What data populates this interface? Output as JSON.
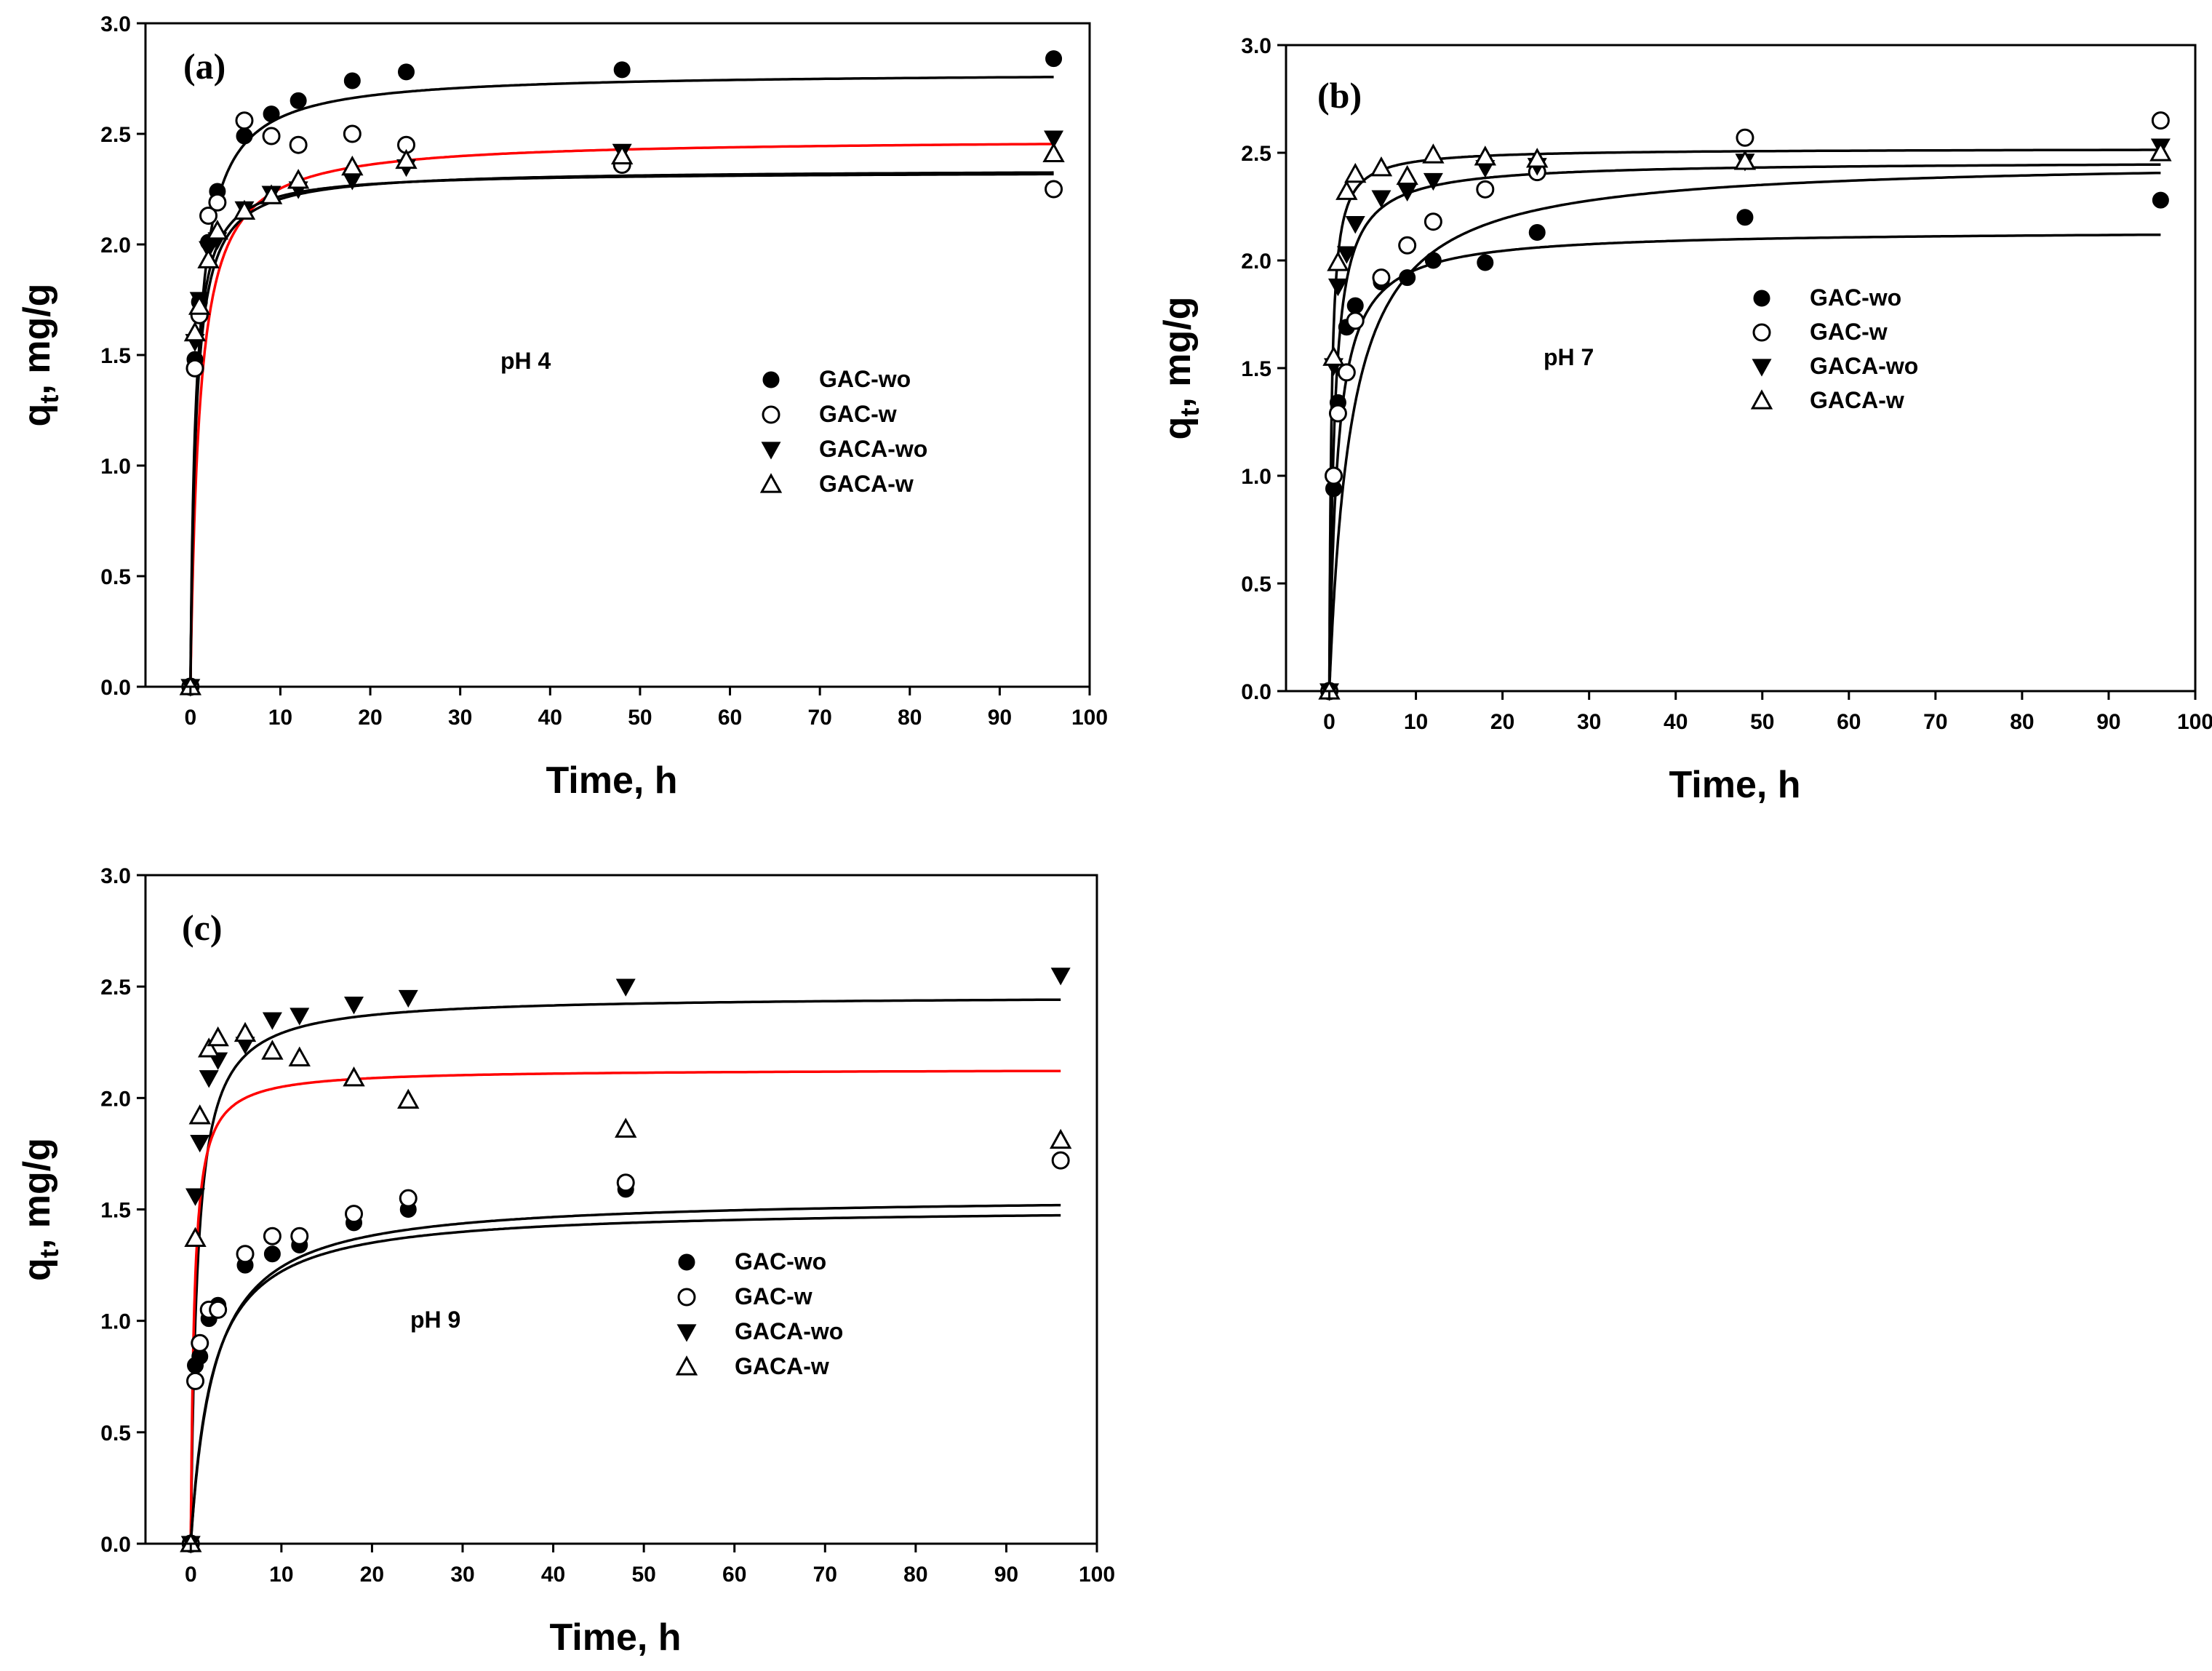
{
  "chart_data": [
    {
      "type": "scatter",
      "panel_label": "(a)",
      "annotation": "pH 4",
      "xlabel": "Time, h",
      "ylabel_main": "q",
      "ylabel_sub": "t",
      "ylabel_unit": ", mg/g",
      "xlim": [
        -5,
        100
      ],
      "ylim": [
        0,
        3.0
      ],
      "xticks": [
        0,
        10,
        20,
        30,
        40,
        50,
        60,
        70,
        80,
        90,
        100
      ],
      "xtick_labels": [
        "0",
        "10",
        "20",
        "30",
        "40",
        "50",
        "60",
        "70",
        "80",
        "90",
        "100"
      ],
      "yticks": [
        0,
        0.5,
        1.0,
        1.5,
        2.0,
        2.5,
        3.0
      ],
      "ytick_labels": [
        "0.0",
        "0.5",
        "1.0",
        "1.5",
        "2.0",
        "2.5",
        "3.0"
      ],
      "legend_position": "right-middle",
      "series": [
        {
          "name": "GAC-wo",
          "marker": "filled-circle",
          "x": [
            0,
            0.5,
            1,
            2,
            3,
            6,
            9,
            12,
            18,
            24,
            48,
            96
          ],
          "y": [
            0,
            1.48,
            1.74,
            2.01,
            2.24,
            2.49,
            2.59,
            2.65,
            2.74,
            2.78,
            2.79,
            2.84
          ]
        },
        {
          "name": "GAC-w",
          "marker": "open-circle",
          "x": [
            0,
            0.5,
            1,
            2,
            3,
            6,
            9,
            12,
            18,
            24,
            48,
            96
          ],
          "y": [
            0,
            1.44,
            1.68,
            2.13,
            2.19,
            2.56,
            2.49,
            2.45,
            2.5,
            2.45,
            2.36,
            2.25
          ]
        },
        {
          "name": "GACA-wo",
          "marker": "filled-triangle-down",
          "x": [
            0,
            0.5,
            1,
            2,
            3,
            6,
            9,
            12,
            18,
            24,
            48,
            96
          ],
          "y": [
            0,
            1.56,
            1.75,
            1.98,
            2.02,
            2.16,
            2.23,
            2.25,
            2.29,
            2.35,
            2.42,
            2.48
          ]
        },
        {
          "name": "GACA-w",
          "marker": "open-triangle-up",
          "x": [
            0,
            0.5,
            1,
            2,
            3,
            6,
            9,
            12,
            18,
            24,
            48,
            96
          ],
          "y": [
            0,
            1.6,
            1.72,
            1.93,
            2.06,
            2.15,
            2.22,
            2.29,
            2.35,
            2.38,
            2.4,
            2.41
          ]
        }
      ],
      "fits": [
        {
          "qe": 2.78,
          "k": 0.45,
          "color": "#000000"
        },
        {
          "qe": 2.48,
          "k": 0.4,
          "color": "#ff0000"
        },
        {
          "qe": 2.34,
          "k": 0.7,
          "color": "#000000"
        },
        {
          "qe": 2.33,
          "k": 0.85,
          "color": "#000000"
        }
      ]
    },
    {
      "type": "scatter",
      "panel_label": "(b)",
      "annotation": "pH 7",
      "xlabel": "Time, h",
      "ylabel_main": "q",
      "ylabel_sub": "t",
      "ylabel_unit": ", mg/g",
      "xlim": [
        -5,
        100
      ],
      "ylim": [
        0,
        3.0
      ],
      "xticks": [
        0,
        10,
        20,
        30,
        40,
        50,
        60,
        70,
        80,
        90,
        100
      ],
      "xtick_labels": [
        "0",
        "10",
        "20",
        "30",
        "40",
        "50",
        "60",
        "70",
        "80",
        "90",
        "100"
      ],
      "yticks": [
        0,
        0.5,
        1.0,
        1.5,
        2.0,
        2.5,
        3.0
      ],
      "ytick_labels": [
        "0.0",
        "0.5",
        "1.0",
        "1.5",
        "2.0",
        "2.5",
        "3.0"
      ],
      "legend_position": "right-middle",
      "series": [
        {
          "name": "GAC-wo",
          "marker": "filled-circle",
          "x": [
            0,
            0.5,
            1,
            2,
            3,
            6,
            9,
            12,
            18,
            24,
            48,
            96
          ],
          "y": [
            0,
            0.94,
            1.34,
            1.69,
            1.79,
            1.9,
            1.92,
            2.0,
            1.99,
            2.13,
            2.2,
            2.28
          ]
        },
        {
          "name": "GAC-w",
          "marker": "open-circle",
          "x": [
            0,
            0.5,
            1,
            2,
            3,
            6,
            9,
            12,
            18,
            24,
            48,
            96
          ],
          "y": [
            0,
            1.0,
            1.29,
            1.48,
            1.72,
            1.92,
            2.07,
            2.18,
            2.33,
            2.41,
            2.57,
            2.65
          ]
        },
        {
          "name": "GACA-wo",
          "marker": "filled-triangle-down",
          "x": [
            0,
            0.5,
            1,
            2,
            3,
            6,
            9,
            12,
            18,
            24,
            48,
            96
          ],
          "y": [
            0,
            1.51,
            1.88,
            2.03,
            2.17,
            2.29,
            2.32,
            2.37,
            2.43,
            2.44,
            2.46,
            2.53
          ]
        },
        {
          "name": "GACA-w",
          "marker": "open-triangle-up",
          "x": [
            0,
            0.5,
            1,
            2,
            3,
            6,
            9,
            12,
            18,
            24,
            48,
            96
          ],
          "y": [
            0,
            1.55,
            1.99,
            2.32,
            2.4,
            2.43,
            2.39,
            2.49,
            2.48,
            2.47,
            2.46,
            2.5
          ]
        }
      ],
      "fits": [
        {
          "qe": 2.14,
          "k": 0.5,
          "color": "#000000"
        },
        {
          "qe": 2.47,
          "k": 0.16,
          "color": "#000000"
        },
        {
          "qe": 2.46,
          "k": 0.7,
          "color": "#000000"
        },
        {
          "qe": 2.52,
          "k": 1.6,
          "color": "#000000"
        }
      ]
    },
    {
      "type": "scatter",
      "panel_label": "(c)",
      "annotation": "pH 9",
      "xlabel": "Time, h",
      "ylabel_main": "q",
      "ylabel_sub": "t",
      "ylabel_unit": ", mg/g",
      "xlim": [
        -5,
        100
      ],
      "ylim": [
        0,
        3.0
      ],
      "xticks": [
        0,
        10,
        20,
        30,
        40,
        50,
        60,
        70,
        80,
        90,
        100
      ],
      "xtick_labels": [
        "0",
        "10",
        "20",
        "30",
        "40",
        "50",
        "60",
        "70",
        "80",
        "90",
        "100"
      ],
      "yticks": [
        0,
        0.5,
        1.0,
        1.5,
        2.0,
        2.5,
        3.0
      ],
      "ytick_labels": [
        "0.0",
        "0.5",
        "1.0",
        "1.5",
        "2.0",
        "2.5",
        "3.0"
      ],
      "legend_position": "center-bottom",
      "series": [
        {
          "name": "GAC-wo",
          "marker": "filled-circle",
          "x": [
            0,
            0.5,
            1,
            2,
            3,
            6,
            9,
            12,
            18,
            24,
            48,
            96
          ],
          "y": [
            0,
            0.8,
            0.84,
            1.01,
            1.07,
            1.25,
            1.3,
            1.34,
            1.44,
            1.5,
            1.59,
            1.72
          ]
        },
        {
          "name": "GAC-w",
          "marker": "open-circle",
          "x": [
            0,
            0.5,
            1,
            2,
            3,
            6,
            9,
            12,
            18,
            24,
            48,
            96
          ],
          "y": [
            0,
            0.73,
            0.9,
            1.05,
            1.05,
            1.3,
            1.38,
            1.38,
            1.48,
            1.55,
            1.62,
            1.72
          ]
        },
        {
          "name": "GACA-wo",
          "marker": "filled-triangle-down",
          "x": [
            0,
            0.5,
            1,
            2,
            3,
            6,
            9,
            12,
            18,
            24,
            48,
            96
          ],
          "y": [
            0,
            1.56,
            1.8,
            2.09,
            2.17,
            2.24,
            2.35,
            2.37,
            2.42,
            2.45,
            2.5,
            2.55
          ]
        },
        {
          "name": "GACA-w",
          "marker": "open-triangle-up",
          "x": [
            0,
            0.5,
            1,
            2,
            3,
            6,
            9,
            12,
            18,
            24,
            48,
            96
          ],
          "y": [
            0,
            1.37,
            1.92,
            2.22,
            2.27,
            2.29,
            2.21,
            2.18,
            2.09,
            1.99,
            1.86,
            1.81
          ]
        }
      ],
      "fits": [
        {
          "qe": 2.46,
          "k": 0.55,
          "color": "#000000"
        },
        {
          "qe": 2.13,
          "k": 1.2,
          "color": "#ff0000"
        },
        {
          "qe": 1.56,
          "k": 0.25,
          "color": "#000000"
        },
        {
          "qe": 1.51,
          "k": 0.28,
          "color": "#000000"
        }
      ]
    }
  ]
}
